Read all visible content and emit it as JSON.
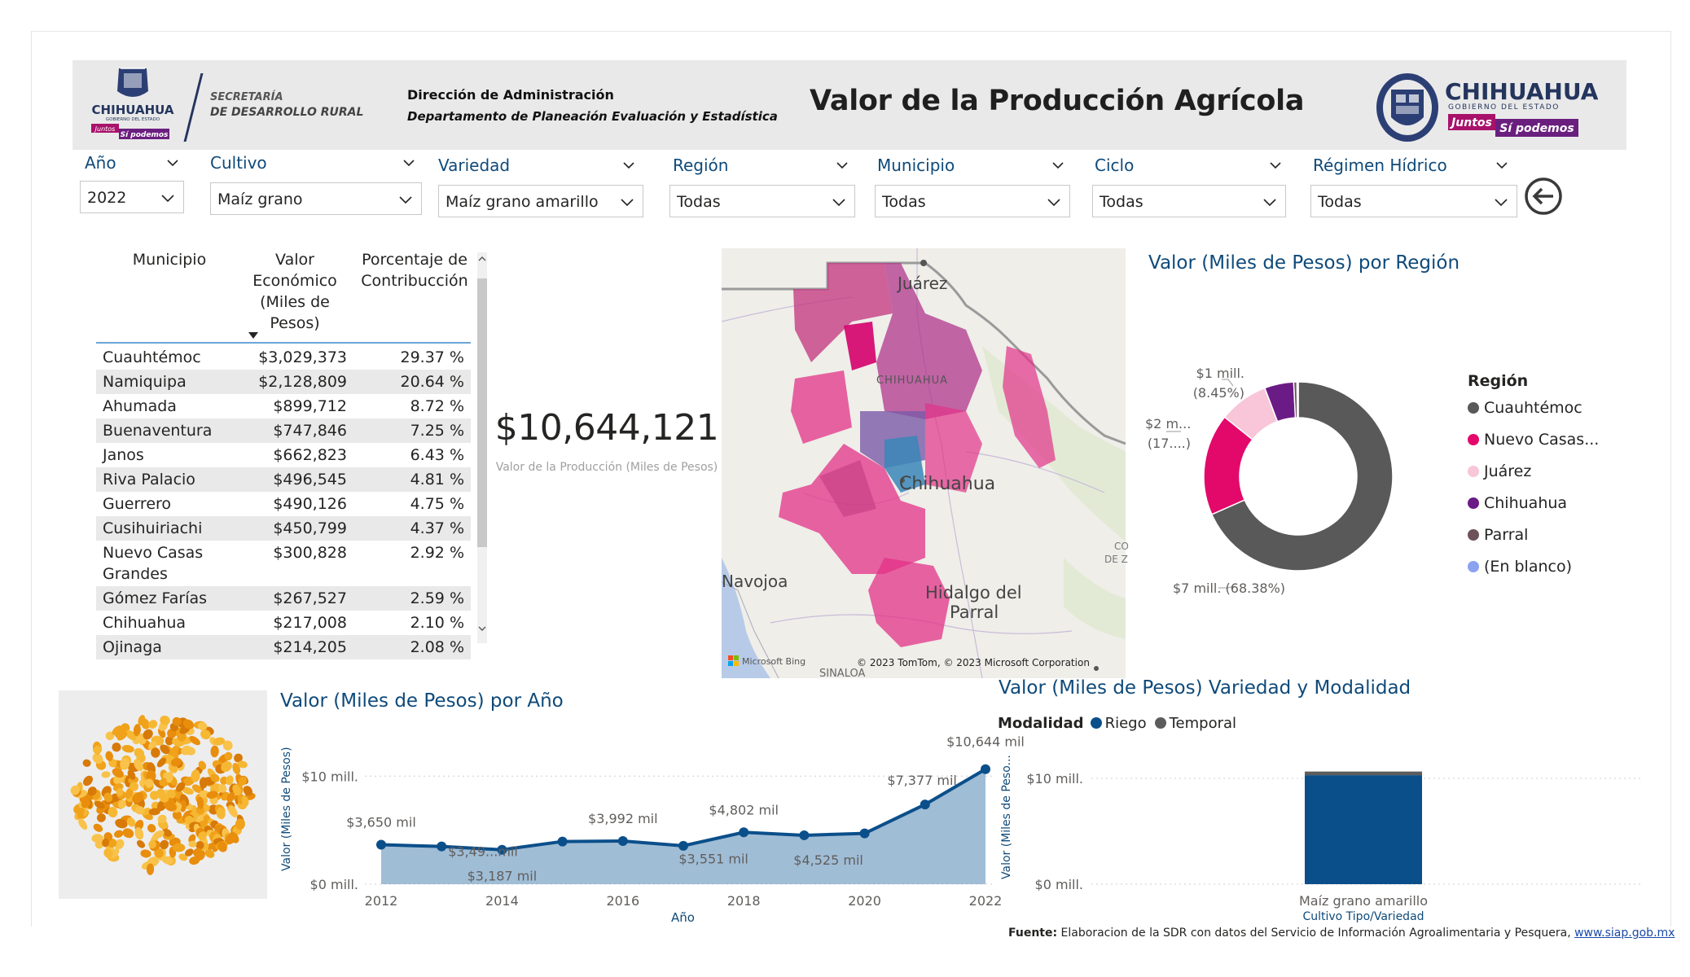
{
  "header": {
    "logo_left": {
      "line1": "CHIHUAHUA",
      "line2": "GOBIERNO DEL ESTADO",
      "slogan1": "Juntos",
      "slogan2": "Sí podemos"
    },
    "secretaria": {
      "line1": "SECRETARÍA",
      "line2": "DE DESARROLLO RURAL"
    },
    "direccion": "Dirección de Administración",
    "departamento": "Departamento de Planeación Evaluación y Estadística",
    "title": "Valor de la Producción Agrícola",
    "logo_right": {
      "line1": "CHIHUAHUA",
      "line2": "GOBIERNO DEL ESTADO",
      "slogan1": "Juntos",
      "slogan2": "Sí podemos"
    }
  },
  "filters": [
    {
      "label": "Año",
      "value": "2022"
    },
    {
      "label": "Cultivo",
      "value": "Maíz grano"
    },
    {
      "label": "Variedad",
      "value": "Maíz grano amarillo"
    },
    {
      "label": "Región",
      "value": "Todas"
    },
    {
      "label": "Municipio",
      "value": "Todas"
    },
    {
      "label": "Ciclo",
      "value": "Todas"
    },
    {
      "label": "Régimen Hídrico",
      "value": "Todas"
    }
  ],
  "table": {
    "headers": [
      "Municipio",
      "Valor Económico (Miles de Pesos)",
      "Porcentaje de Contribucción"
    ],
    "rows": [
      {
        "municipio": "Cuauhtémoc",
        "valor": "$3,029,373",
        "pct": "29.37 %"
      },
      {
        "municipio": "Namiquipa",
        "valor": "$2,128,809",
        "pct": "20.64 %"
      },
      {
        "municipio": "Ahumada",
        "valor": "$899,712",
        "pct": "8.72 %"
      },
      {
        "municipio": "Buenaventura",
        "valor": "$747,846",
        "pct": "7.25 %"
      },
      {
        "municipio": "Janos",
        "valor": "$662,823",
        "pct": "6.43 %"
      },
      {
        "municipio": "Riva Palacio",
        "valor": "$496,545",
        "pct": "4.81 %"
      },
      {
        "municipio": "Guerrero",
        "valor": "$490,126",
        "pct": "4.75 %"
      },
      {
        "municipio": "Cusihuiriachi",
        "valor": "$450,799",
        "pct": "4.37 %"
      },
      {
        "municipio": "Nuevo Casas Grandes",
        "valor": "$300,828",
        "pct": "2.92 %"
      },
      {
        "municipio": "Gómez Farías",
        "valor": "$267,527",
        "pct": "2.59 %"
      },
      {
        "municipio": "Chihuahua",
        "valor": "$217,008",
        "pct": "2.10 %"
      },
      {
        "municipio": "Ojinaga",
        "valor": "$214,205",
        "pct": "2.08 %"
      }
    ]
  },
  "kpi": {
    "value": "$10,644,121",
    "label": "Valor de la Producción (Miles de Pesos)"
  },
  "map": {
    "labels": {
      "juarez": "Juárez",
      "chihuahua_state": "CHIHUAHUA",
      "chihuahua_city": "Chihuahua",
      "navojoa": "Navojoa",
      "hidalgo": "Hidalgo del",
      "parral": "Parral",
      "sinaloa": "SINALOA",
      "coa": "CO",
      "de_z": "DE Z"
    },
    "attribution": "© 2023 TomTom, © 2023 Microsoft Corporation",
    "bing": "Microsoft Bing"
  },
  "donut": {
    "title": "Valor (Miles de Pesos) por Región",
    "legend_title": "Región",
    "labels": {
      "cuauhtemoc": "$7 mill. (68.38%)",
      "nuevo_casas_1": "$2 m...",
      "nuevo_casas_2": "(17....)",
      "juarez_1": "$1 mill.",
      "juarez_2": "(8.45%)"
    },
    "legend": [
      {
        "name": "Cuauhtémoc",
        "color": "#595959"
      },
      {
        "name": "Nuevo Casas...",
        "color": "#e3096a"
      },
      {
        "name": "Juárez",
        "color": "#f8c6d8"
      },
      {
        "name": "Chihuahua",
        "color": "#6b1b86"
      },
      {
        "name": "Parral",
        "color": "#6e525a"
      },
      {
        "name": "(En blanco)",
        "color": "#8aa2f0"
      }
    ]
  },
  "line_chart": {
    "title": "Valor (Miles de Pesos) por Año",
    "ylabel": "Valor (Miles de Pesos)",
    "xlabel": "Año",
    "y_ticks": [
      "$0 mill.",
      "$10 mill."
    ],
    "x_ticks": [
      "2012",
      "2014",
      "2016",
      "2018",
      "2020",
      "2022"
    ],
    "point_labels": [
      "$3,650 mil",
      "$3,49...mil",
      "$3,187 mil",
      "$3,992 mil",
      "$3,551 mil",
      "$4,802 mil",
      "$4,525 mil",
      "$7,377 mil",
      "$10,644 mil"
    ]
  },
  "bar_chart": {
    "title": "Valor (Miles de Pesos) Variedad y Modalidad",
    "legend_title": "Modalidad",
    "legend": [
      {
        "name": "Riego",
        "color": "#0b4f8a"
      },
      {
        "name": "Temporal",
        "color": "#5c5c5c"
      }
    ],
    "ylabel": "Valor (Miles de Peso...",
    "xlabel": "Cultivo Tipo/Variedad",
    "y_ticks": [
      "$0 mill.",
      "$10 mill."
    ],
    "category": "Maíz grano amarillo"
  },
  "footer": {
    "fuente_label": "Fuente:",
    "fuente_text": " Elaboracion de la SDR con datos del Servicio de Información Agroalimentaria y Pesquera, ",
    "link": "www.siap.gob.mx"
  },
  "chart_data": [
    {
      "type": "line",
      "title": "Valor (Miles de Pesos) por Año",
      "xlabel": "Año",
      "ylabel": "Valor (Miles de Pesos)",
      "x": [
        2012,
        2013,
        2014,
        2015,
        2016,
        2017,
        2018,
        2019,
        2020,
        2021,
        2022
      ],
      "series": [
        {
          "values": [
            3650,
            3490,
            3187,
            3950,
            3992,
            3551,
            4802,
            4525,
            4700,
            7377,
            10644
          ]
        }
      ],
      "ylim": [
        0,
        11000
      ]
    },
    {
      "type": "pie",
      "title": "Valor (Miles de Pesos) por Región",
      "categories": [
        "Cuauhtémoc",
        "Nuevo Casas...",
        "Juárez",
        "Chihuahua",
        "Parral",
        "(En blanco)"
      ],
      "values": [
        68.38,
        17.4,
        8.45,
        5.0,
        0.55,
        0.22
      ]
    },
    {
      "type": "bar",
      "title": "Valor (Miles de Pesos) Variedad y Modalidad",
      "categories": [
        "Maíz grano amarillo"
      ],
      "series": [
        {
          "name": "Riego",
          "values": [
            10300
          ]
        },
        {
          "name": "Temporal",
          "values": [
            344
          ]
        }
      ],
      "ylim": [
        0,
        12000
      ]
    }
  ]
}
